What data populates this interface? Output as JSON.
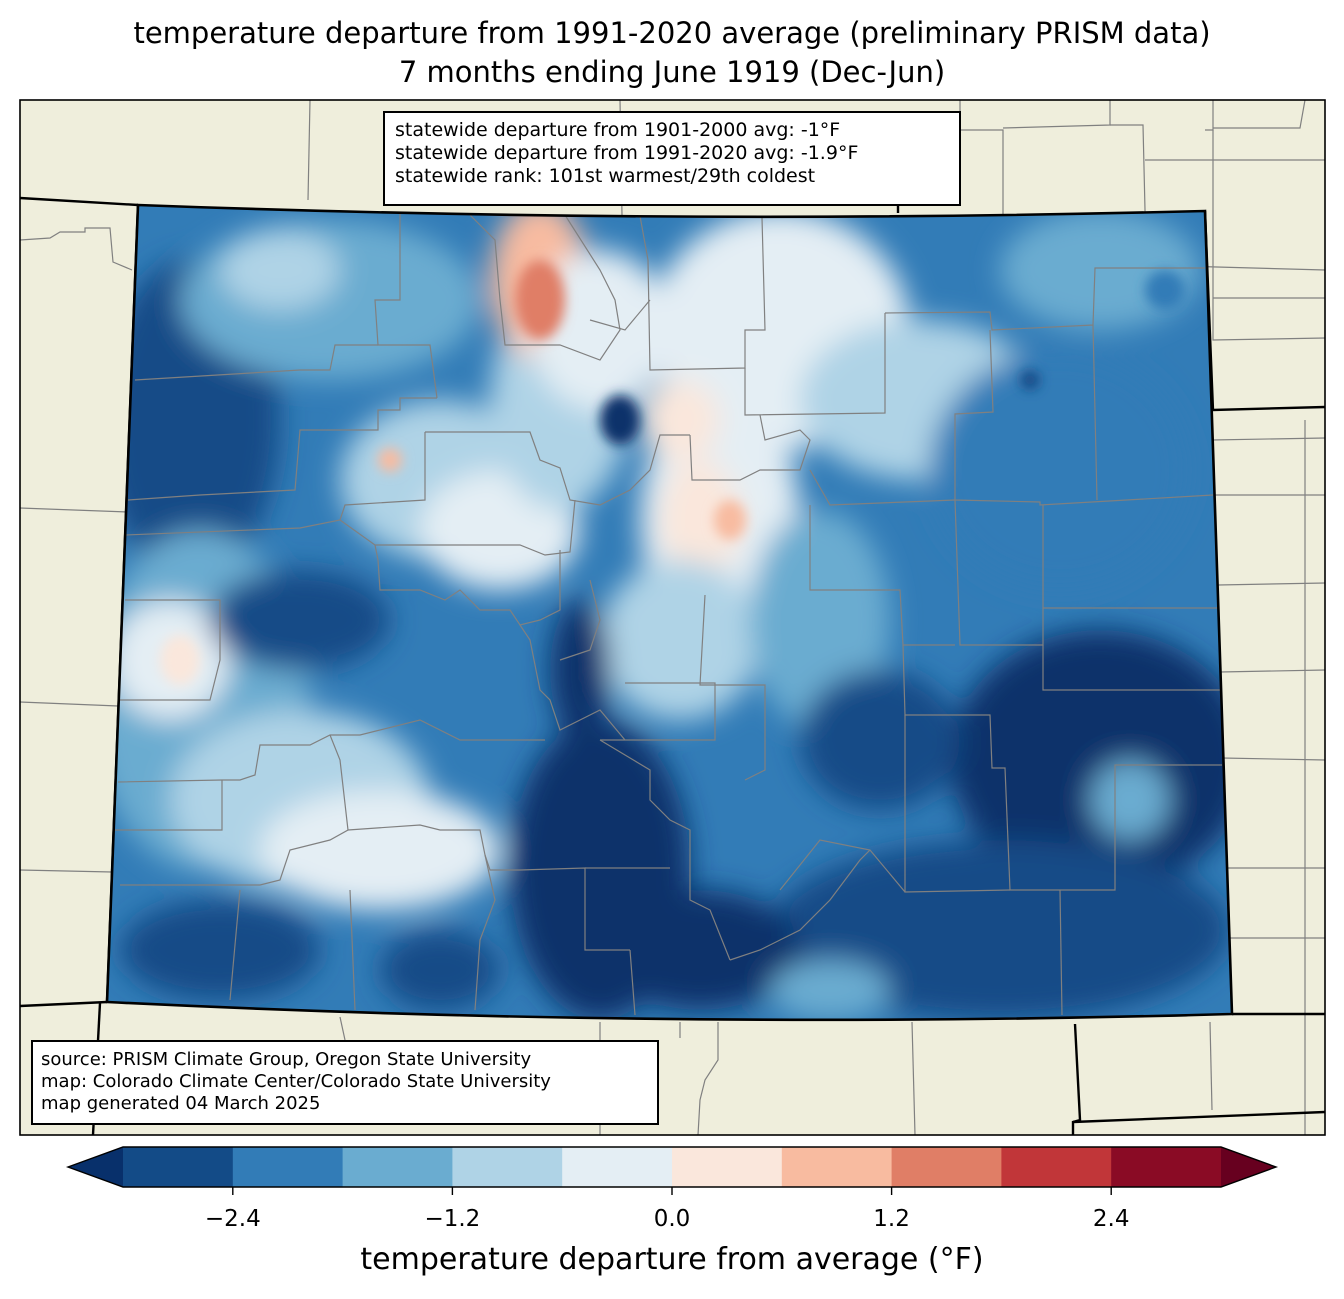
{
  "title": {
    "line1": "temperature departure from 1991-2020 average (preliminary PRISM data)",
    "line2": "7 months ending June 1919 (Dec-Jun)"
  },
  "stats": {
    "line1": "statewide departure from 1901-2000 avg: -1°F",
    "line2": "statewide departure from 1991-2020 avg: -1.9°F",
    "line3": "statewide rank: 101st warmest/29th coldest"
  },
  "source": {
    "line1": "source: PRISM Climate Group, Oregon State University",
    "line2": "map: Colorado Climate Center/Colorado State University",
    "line3": "map generated 04 March 2025"
  },
  "colorbar": {
    "label": "temperature departure from average (°F)",
    "ticks": [
      "−2.4",
      "−1.2",
      "0.0",
      "1.2",
      "2.4"
    ],
    "tick_values": [
      -2.4,
      -1.2,
      0.0,
      1.2,
      2.4
    ],
    "bin_edges": [
      -3.0,
      -2.4,
      -1.8,
      -1.2,
      -0.6,
      0.0,
      0.6,
      1.2,
      1.8,
      2.4,
      3.0
    ],
    "under_color": "#08306b",
    "over_color": "#67001f",
    "colors": [
      "#134b87",
      "#327cb7",
      "#6aacd0",
      "#afd3e6",
      "#e4eef4",
      "#fae7dc",
      "#f8bba0",
      "#e07e66",
      "#c13639",
      "#8a0b25"
    ]
  },
  "map_colors": {
    "land": "#efeedc",
    "state_border": "#000000",
    "county_border": "#808080"
  }
}
